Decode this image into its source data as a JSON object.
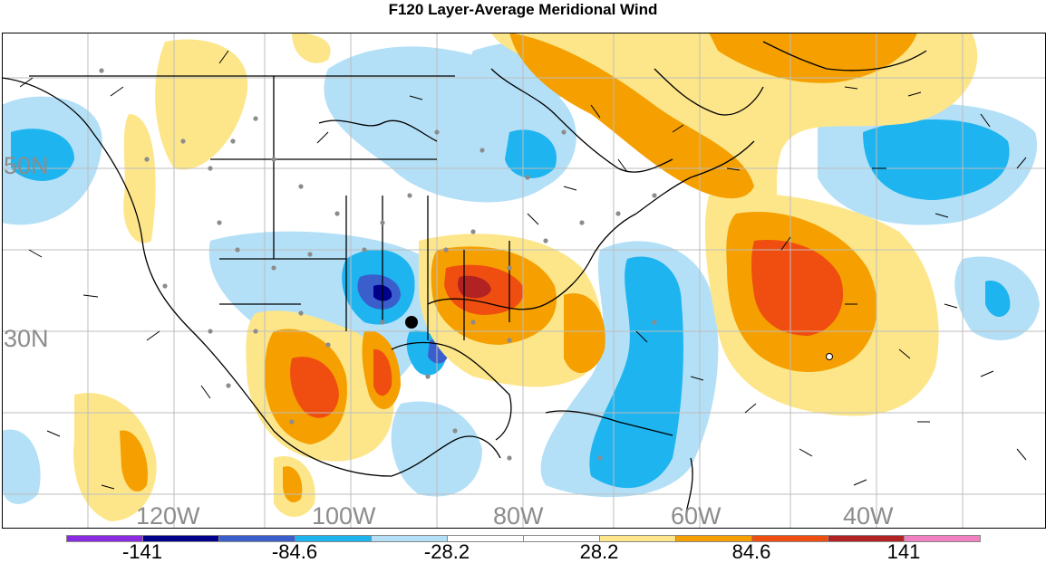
{
  "title": "F120 Layer-Average Meridional Wind",
  "latitude_labels": [
    "50N",
    "30N"
  ],
  "longitude_labels": [
    "120W",
    "100W",
    "80W",
    "60W",
    "40W"
  ],
  "colorbar": {
    "colors": [
      "#8a2be2",
      "#00008b",
      "#3a5fcd",
      "#1eb4f0",
      "#b3e0f7",
      "#ffffff",
      "#ffffff",
      "#fde68a",
      "#f5a000",
      "#f04e10",
      "#b22222",
      "#f080c0"
    ],
    "labels": [
      "-141",
      "-84.6",
      "-28.2",
      "28.2",
      "84.6",
      "141"
    ]
  },
  "map": {
    "region": "North America, Gulf of Mexico, Caribbean and western North Atlantic",
    "field": "layer-average meridional wind (shaded), wind barbs, station dots"
  }
}
